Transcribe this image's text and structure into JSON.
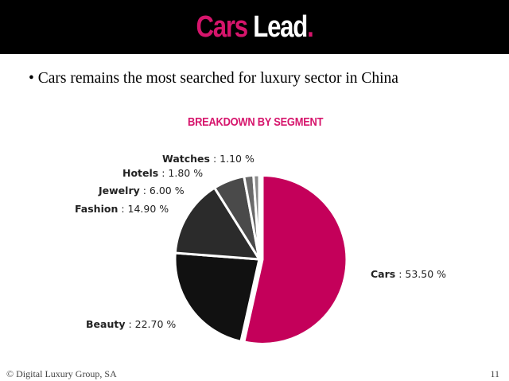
{
  "header": {
    "title_part1": "Cars",
    "title_part2": "Lead",
    "title_dot": ".",
    "accent_color": "#d6156c",
    "bar_color": "#000000"
  },
  "bullet": {
    "symbol": "•",
    "text": "Cars remains the most searched for luxury sector in China"
  },
  "chart_data": {
    "type": "pie",
    "title": "BREAKDOWN BY SEGMENT",
    "title_color": "#d6156c",
    "unit": "%",
    "slices": [
      {
        "name": "Cars",
        "value": 53.5,
        "label": "53.50 %",
        "color": "#c4005a"
      },
      {
        "name": "Beauty",
        "value": 22.7,
        "label": "22.70 %",
        "color": "#111111"
      },
      {
        "name": "Fashion",
        "value": 14.9,
        "label": "14.90 %",
        "color": "#2b2b2b"
      },
      {
        "name": "Jewelry",
        "value": 6.0,
        "label": "6.00 %",
        "color": "#4a4a4a"
      },
      {
        "name": "Hotels",
        "value": 1.8,
        "label": "1.80 %",
        "color": "#6a6a6a"
      },
      {
        "name": "Watches",
        "value": 1.1,
        "label": "1.10 %",
        "color": "#8a8a8a"
      }
    ]
  },
  "footer": {
    "copyright": "© Digital Luxury Group, SA",
    "page_number": "11"
  }
}
